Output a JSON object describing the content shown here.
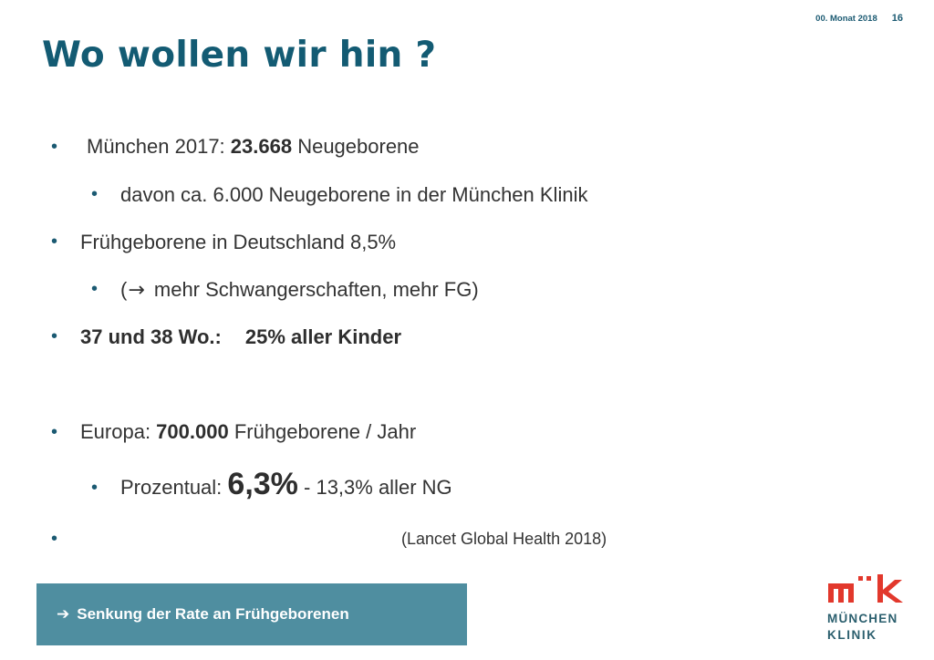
{
  "header": {
    "date": "00. Monat 2018",
    "page_number": "16"
  },
  "title": "Wo wollen wir hin ?",
  "bullets": {
    "b1": {
      "prefix": "München 2017: ",
      "bold": "23.668",
      "suffix": " Neugeborene"
    },
    "b2": {
      "text": "davon ca. 6.000 Neugeborene in der München Klinik"
    },
    "b3": {
      "text": "Frühgeborene in Deutschland 8,5%"
    },
    "b4": {
      "open": "(",
      "arrow_icon": "arrow-right-icon",
      "arrow": "→",
      "text": " mehr Schwangerschaften, mehr FG)"
    },
    "b5": {
      "label": "37 und 38 Wo.:",
      "value": "25% aller Kinder"
    },
    "b6": {
      "prefix": "Europa: ",
      "bold": "700.000",
      "suffix": " Frühgeborene  / Jahr"
    },
    "b7": {
      "prefix": "Prozentual: ",
      "big": "6,3%",
      "suffix": " - 13,3%  aller NG"
    },
    "b8": {
      "text": "(Lancet Global Health 2018)"
    }
  },
  "banner": {
    "icon": "arrow-right-icon",
    "arrow": "➔",
    "text": "Senkung der Rate an Frühgeborenen"
  },
  "logo": {
    "mark": "m k",
    "line1": "MÜNCHEN",
    "line2": "KLINIK"
  },
  "colors": {
    "title": "#135b73",
    "banner": "#4f8ea0",
    "logo_red": "#e2382c",
    "logo_text": "#2b5f6e"
  }
}
